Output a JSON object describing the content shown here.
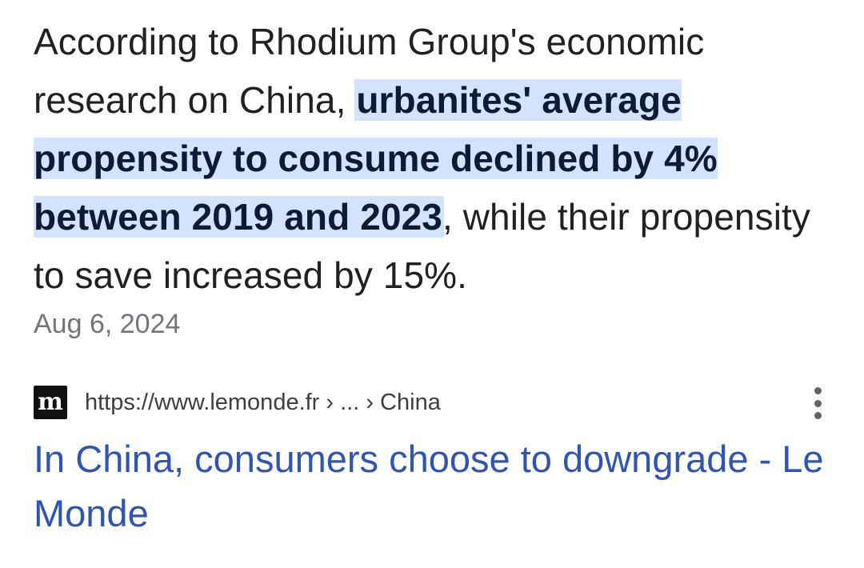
{
  "snippet": {
    "before": "According to Rhodium Group's economic research on China, ",
    "highlight": "urbanites' average propensity to consume declined by 4% between 2019 and 2023",
    "after": ", while their propensity to save increased by 15%."
  },
  "date": "Aug 6, 2024",
  "source": {
    "favicon_glyph": "m",
    "url": "https://www.lemonde.fr › ... › China",
    "menu_icon": "more-vert-icon"
  },
  "result_title": "In China, consumers choose to downgrade - Le Monde",
  "colors": {
    "highlight_bg": "#d3e3fd",
    "link": "#2e55b5",
    "text": "#202124",
    "meta": "#70757a"
  }
}
